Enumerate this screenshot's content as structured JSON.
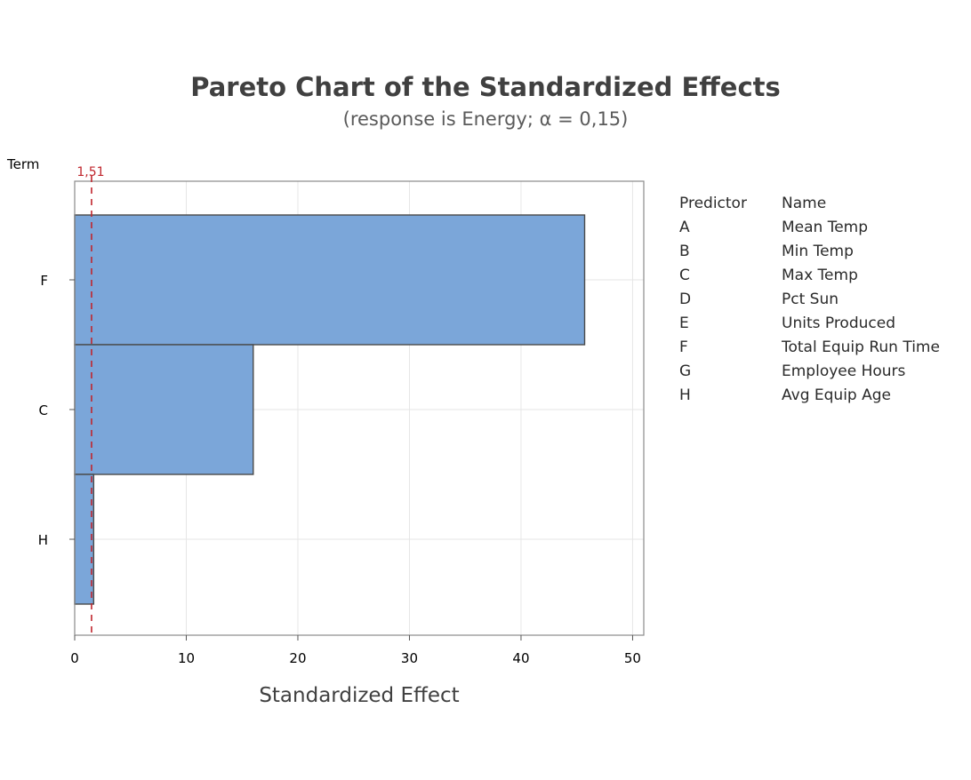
{
  "chart_data": {
    "type": "bar",
    "orientation": "horizontal",
    "title": "Pareto Chart of the Standardized Effects",
    "subtitle": "(response is Energy; α = 0,15)",
    "xlabel": "Standardized Effect",
    "ylabel": "Term",
    "categories": [
      "F",
      "C",
      "H"
    ],
    "values": [
      45.7,
      16.0,
      1.7
    ],
    "xlim": [
      0,
      51
    ],
    "xticks": [
      0,
      10,
      20,
      30,
      40,
      50
    ],
    "grid": true,
    "reference_line": {
      "value": 1.51,
      "label": "1,51",
      "color": "#c0262d",
      "style": "dashed"
    },
    "bar_color": "#7ba6d9",
    "bar_edge_color": "#4a4a4a",
    "legend": {
      "headers": [
        "Predictor",
        "Name"
      ],
      "rows": [
        [
          "A",
          "Mean Temp"
        ],
        [
          "B",
          "Min Temp"
        ],
        [
          "C",
          "Max Temp"
        ],
        [
          "D",
          "Pct Sun"
        ],
        [
          "E",
          "Units Produced"
        ],
        [
          "F",
          "Total Equip Run Time"
        ],
        [
          "G",
          "Employee Hours"
        ],
        [
          "H",
          "Avg Equip Age"
        ]
      ]
    }
  }
}
